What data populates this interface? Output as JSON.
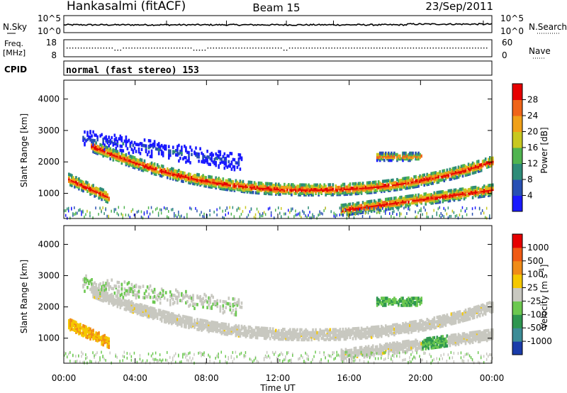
{
  "header": {
    "station": "Hankasalmi (fitACF)",
    "beam": "Beam 15",
    "date": "23/Sep/2011"
  },
  "strips": {
    "nsky_label": "N.Sky",
    "nsky_ticks": [
      "10^5",
      "10^0"
    ],
    "nsearch_label": "N.Search",
    "nsearch_ticks": [
      "10^5",
      "10^0"
    ],
    "freq_label_1": "Freq.",
    "freq_label_2": "[MHz]",
    "freq_ticks": [
      "18",
      "8"
    ],
    "nave_label": "Nave",
    "nave_ticks": [
      "60",
      "0"
    ],
    "cpid_label": "CPID",
    "cpid_value": "normal (fast stereo) 153"
  },
  "chart_data": [
    {
      "type": "heatmap",
      "title": "",
      "ylabel": "Slant Range [km]",
      "xlabel": "",
      "y_ticks": [
        "1000",
        "2000",
        "3000",
        "4000"
      ],
      "ylim": [
        200,
        4600
      ],
      "xlim": [
        0,
        24
      ],
      "colorbar": {
        "label": "Power [dB]",
        "ticks": [
          "4",
          "8",
          "12",
          "16",
          "20",
          "24",
          "28"
        ],
        "colors": [
          "#1a1aff",
          "#2850b4",
          "#2e8c78",
          "#50b450",
          "#c8c820",
          "#f0a018",
          "#f06418",
          "#e60000"
        ]
      },
      "echo_bands": [
        {
          "t_start": 0.2,
          "t_end": 2.5,
          "range_start_km": 1500,
          "range_end_km": 900,
          "intensity": "high"
        },
        {
          "t_start": 1.5,
          "t_end": 24.0,
          "range_start_km": 2600,
          "range_end_km": 1000,
          "intensity": "high"
        },
        {
          "t_start": 15.5,
          "t_end": 24.0,
          "range_start_km": 500,
          "range_end_km": 1150,
          "intensity": "high"
        },
        {
          "t_start": 17.5,
          "t_end": 20.0,
          "range_start_km": 2200,
          "range_end_km": 2200,
          "intensity": "medium"
        },
        {
          "t_start": 1.0,
          "t_end": 10.0,
          "range_start_km": 2800,
          "range_end_km": 2000,
          "intensity": "low"
        }
      ]
    },
    {
      "type": "heatmap",
      "title": "",
      "ylabel": "Slant Range [km]",
      "xlabel": "Time UT",
      "x_ticks": [
        "00:00",
        "04:00",
        "08:00",
        "12:00",
        "16:00",
        "20:00",
        "00:00"
      ],
      "y_ticks": [
        "1000",
        "2000",
        "3000",
        "4000"
      ],
      "ylim": [
        200,
        4600
      ],
      "xlim": [
        0,
        24
      ],
      "colorbar": {
        "label": "Velocity [m s^-1]",
        "ticks": [
          "1000",
          "500",
          "100",
          "25",
          "-25",
          "-100",
          "-500",
          "-1000"
        ],
        "colors": [
          "#1a3caa",
          "#3c8c96",
          "#2e9650",
          "#6cc850",
          "#c8c8c0",
          "#f5c800",
          "#f08c18",
          "#f05a14",
          "#e60000"
        ]
      }
    }
  ]
}
